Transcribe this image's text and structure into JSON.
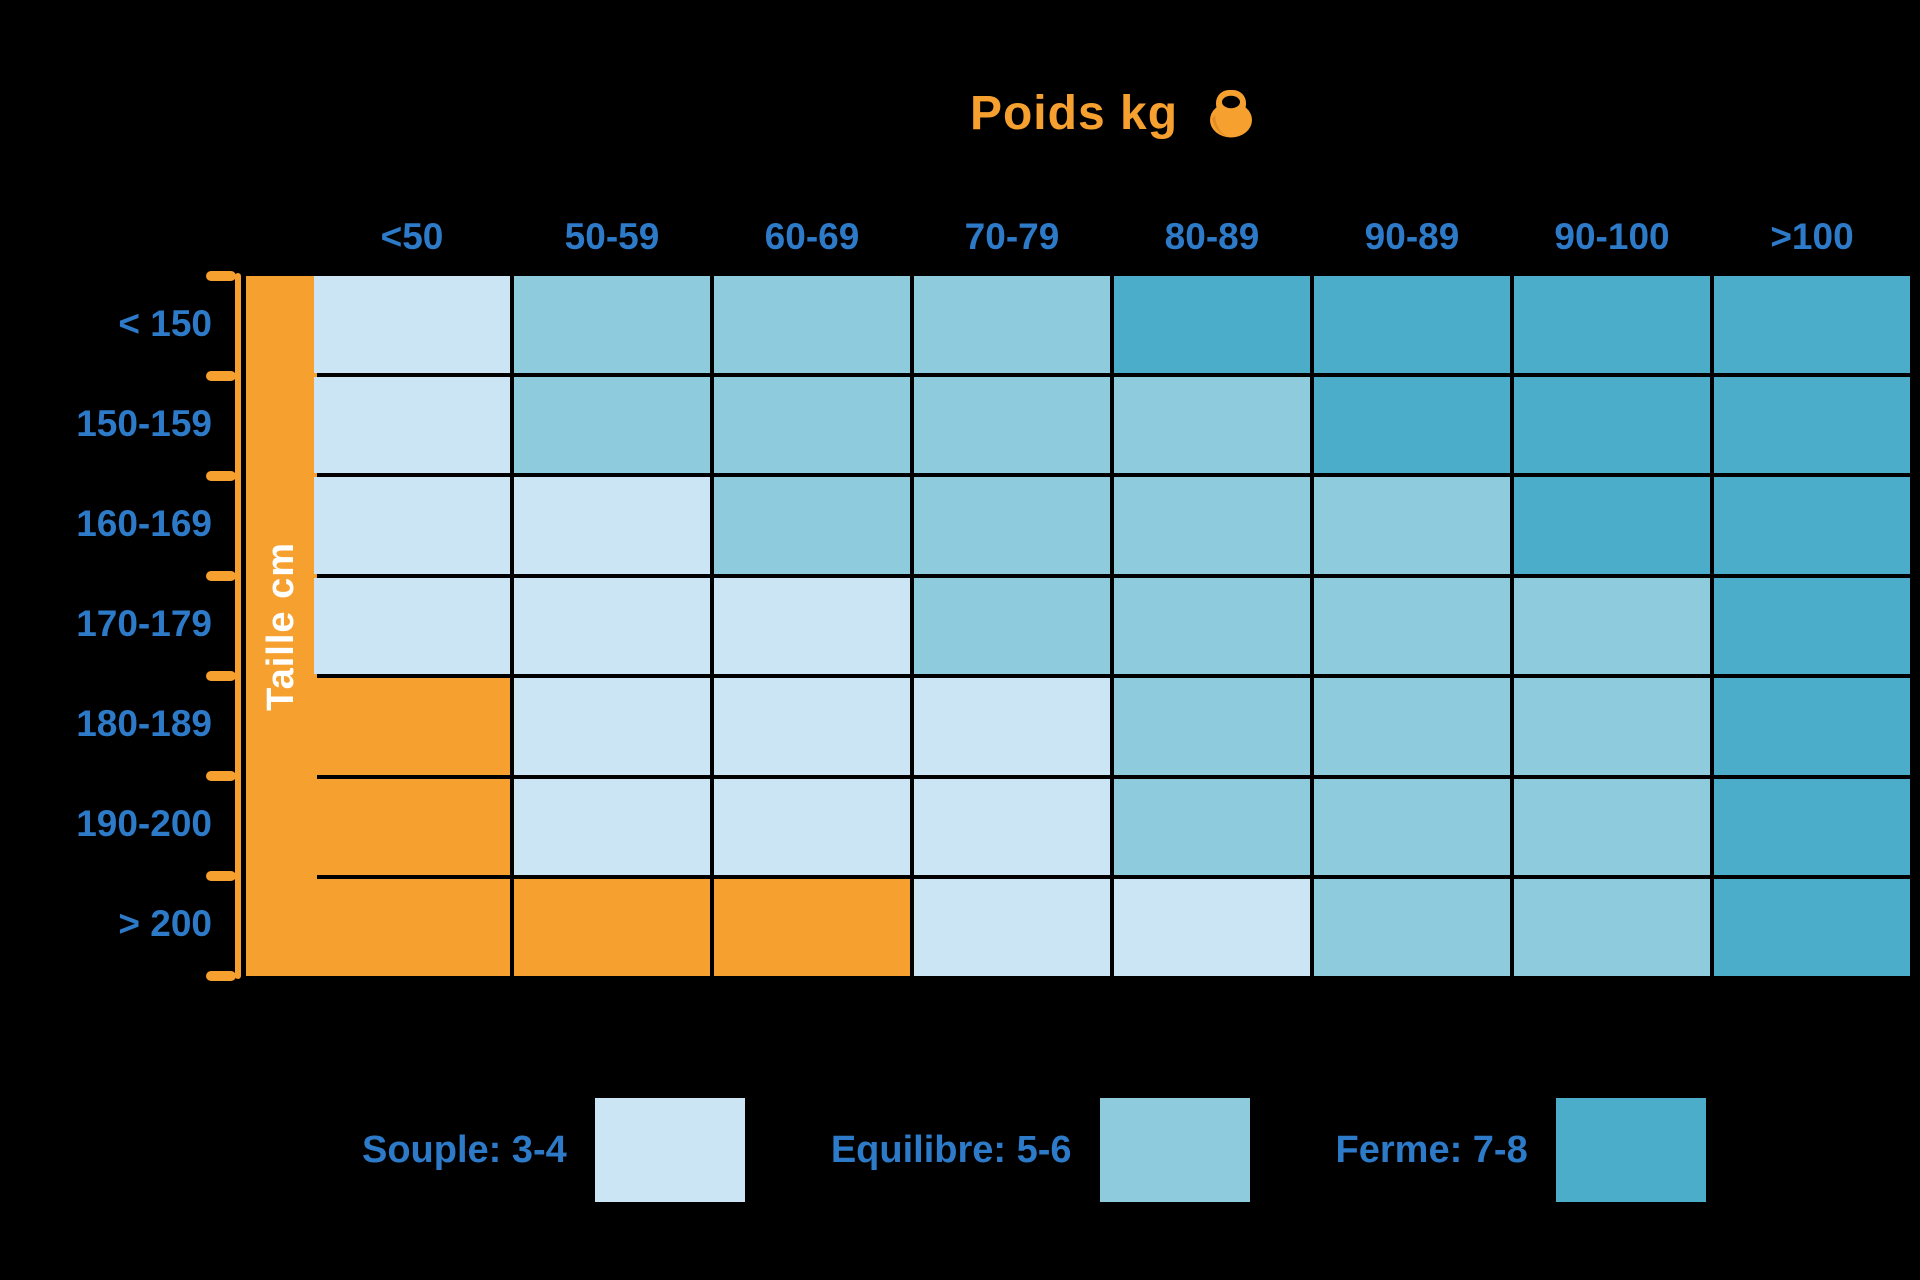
{
  "title": {
    "text": "Poids kg"
  },
  "y_axis": {
    "label": "Taille cm"
  },
  "legend": {
    "items": [
      {
        "label": "Souple: 3-4",
        "color_key": "souple"
      },
      {
        "label": "Equilibre: 5-6",
        "color_key": "equilibre"
      },
      {
        "label": "Ferme: 7-8",
        "color_key": "ferme"
      }
    ]
  },
  "colors": {
    "background": "#000000",
    "souple": "#cbe5f4",
    "equilibre": "#8ecbdd",
    "ferme": "#4badc9",
    "orange": "#f6a02f",
    "orange_shadow": "#e08d26",
    "label_blue": "#2d7ac8",
    "taille_text": "#ffffff"
  },
  "chart_data": {
    "type": "heatmap",
    "title": "Poids kg",
    "x_axis_title": "Poids kg",
    "y_axis_title": "Taille cm",
    "x_categories": [
      "<50",
      "50-59",
      "60-69",
      "70-79",
      "80-89",
      "90-89",
      "90-100",
      ">100"
    ],
    "y_categories": [
      "< 150",
      "150-159",
      "160-169",
      "170-179",
      "180-189",
      "190-200",
      "> 200"
    ],
    "value_legend": {
      "S": "Souple: 3-4",
      "E": "Equilibre: 5-6",
      "F": "Ferme: 7-8",
      "O": "orange cell (no firmness value shown)"
    },
    "matrix": [
      [
        "S",
        "E",
        "E",
        "E",
        "F",
        "F",
        "F",
        "F"
      ],
      [
        "S",
        "E",
        "E",
        "E",
        "E",
        "F",
        "F",
        "F"
      ],
      [
        "S",
        "S",
        "E",
        "E",
        "E",
        "E",
        "F",
        "F"
      ],
      [
        "S",
        "S",
        "S",
        "E",
        "E",
        "E",
        "E",
        "F"
      ],
      [
        "O",
        "S",
        "S",
        "S",
        "E",
        "E",
        "E",
        "F"
      ],
      [
        "O",
        "S",
        "S",
        "S",
        "E",
        "E",
        "E",
        "F"
      ],
      [
        "O",
        "O",
        "O",
        "S",
        "S",
        "E",
        "E",
        "F"
      ]
    ],
    "legend_position": "bottom",
    "grid": true
  }
}
